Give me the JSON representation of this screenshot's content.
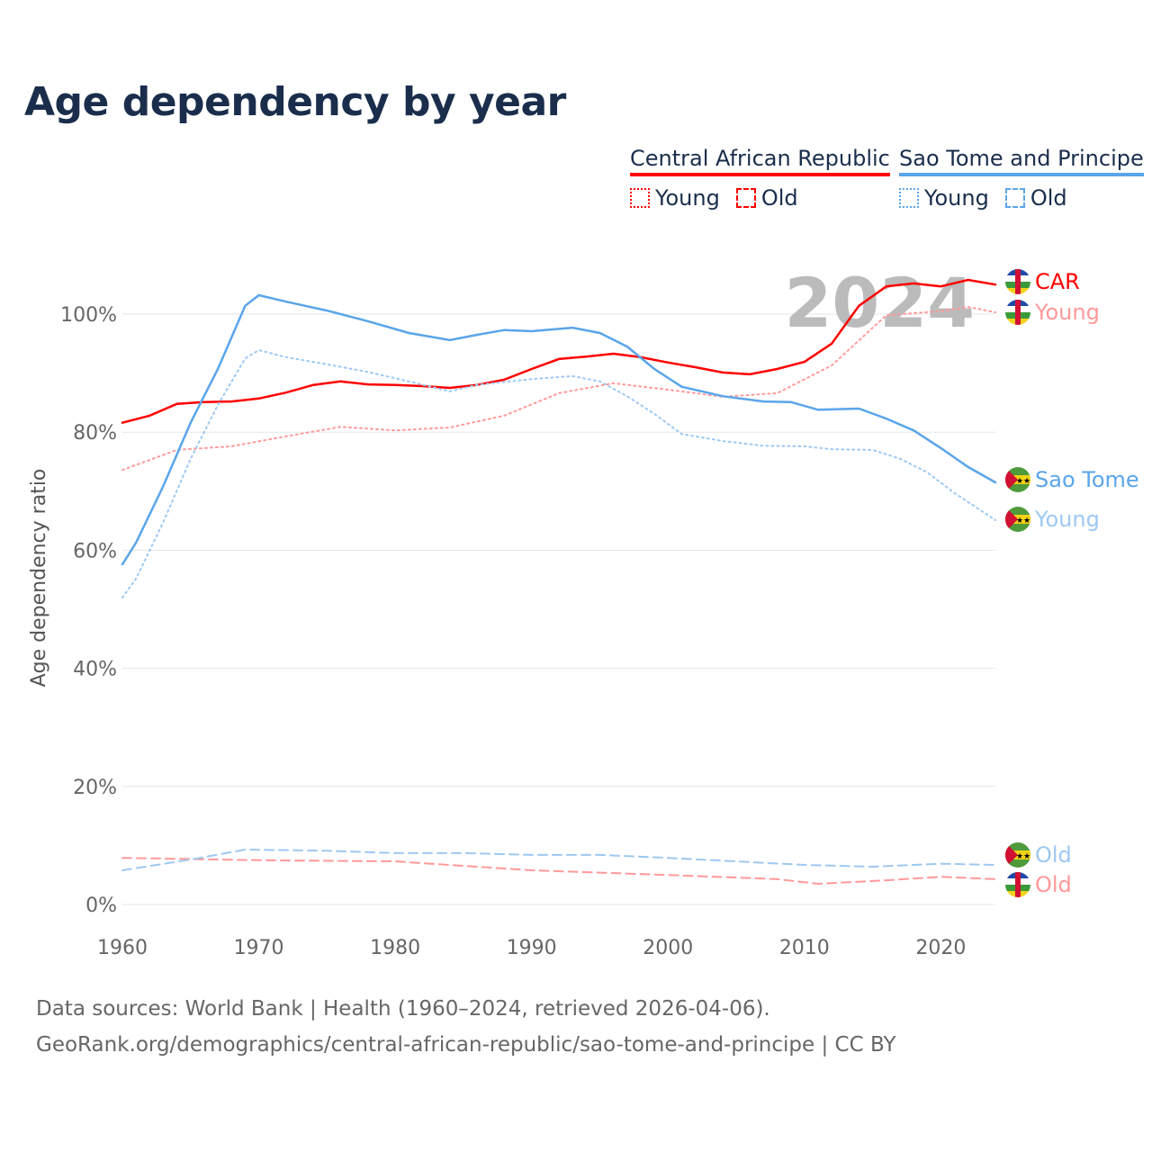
{
  "title": "Age dependency by year",
  "legend": {
    "groups": [
      {
        "name": "Central African Republic",
        "color": "#ff0000",
        "young": "Young",
        "old": "Old"
      },
      {
        "name": "Sao Tome and Principe",
        "color": "#5aa5ea",
        "young": "Young",
        "old": "Old"
      }
    ]
  },
  "year_watermark": "2024",
  "source_line1": "Data sources: World Bank | Health (1960–2024, retrieved 2026-04-06).",
  "source_line2": "GeoRank.org/demographics/central-african-republic/sao-tome-and-principe | CC BY",
  "chart_data": {
    "type": "line",
    "title": "Age dependency by year",
    "xlabel": "",
    "ylabel": "Age dependency ratio",
    "xlim": [
      1960,
      2024
    ],
    "ylim": [
      0,
      110
    ],
    "xticks": [
      1960,
      1970,
      1980,
      1990,
      2000,
      2010,
      2020
    ],
    "yticks": [
      0,
      20,
      40,
      60,
      80,
      100
    ],
    "ytick_labels": [
      "0%",
      "20%",
      "40%",
      "60%",
      "80%",
      "100%"
    ],
    "grid": true,
    "legend_position": "top-right",
    "series": [
      {
        "name": "CAR",
        "country": "Central African Republic",
        "kind": "total",
        "color": "#ff0000",
        "style": "solid",
        "label": "CAR",
        "x": [
          1960,
          1962,
          1964,
          1966,
          1968,
          1970,
          1972,
          1974,
          1976,
          1978,
          1980,
          1982,
          1984,
          1986,
          1988,
          1990,
          1992,
          1994,
          1996,
          1998,
          2000,
          2002,
          2004,
          2006,
          2008,
          2010,
          2012,
          2014,
          2016,
          2018,
          2020,
          2022,
          2024
        ],
        "y": [
          81.6,
          82.8,
          84.8,
          85.1,
          85.2,
          85.7,
          86.7,
          88.0,
          88.6,
          88.1,
          88.0,
          87.8,
          87.5,
          88.0,
          88.9,
          90.7,
          92.4,
          92.8,
          93.3,
          92.7,
          91.8,
          91.0,
          90.1,
          89.8,
          90.7,
          91.9,
          95.0,
          101.4,
          104.7,
          105.2,
          104.7,
          105.8,
          105.0
        ]
      },
      {
        "name": "CAR Young",
        "country": "Central African Republic",
        "kind": "young",
        "color": "#ff9999",
        "style": "dotted",
        "label": "Young",
        "x": [
          1960,
          1964,
          1968,
          1972,
          1976,
          1980,
          1984,
          1988,
          1992,
          1996,
          2000,
          2004,
          2008,
          2012,
          2016,
          2020,
          2022,
          2024
        ],
        "y": [
          73.6,
          77.0,
          77.6,
          79.3,
          80.9,
          80.3,
          80.8,
          82.8,
          86.6,
          88.3,
          87.2,
          86.0,
          86.6,
          91.3,
          99.8,
          100.5,
          101.2,
          100.3
        ]
      },
      {
        "name": "CAR Old",
        "country": "Central African Republic",
        "kind": "old",
        "color": "#ff9999",
        "style": "dashed",
        "label": "Old",
        "x": [
          1960,
          1970,
          1980,
          1990,
          2000,
          2008,
          2011,
          2016,
          2020,
          2024
        ],
        "y": [
          7.9,
          7.5,
          7.3,
          5.8,
          5.0,
          4.3,
          3.5,
          4.1,
          4.7,
          4.3
        ]
      },
      {
        "name": "Sao Tome",
        "country": "Sao Tome and Principe",
        "kind": "total",
        "color": "#5aa5ea",
        "style": "solid",
        "label": "Sao Tome",
        "x": [
          1960,
          1961,
          1963,
          1965,
          1967,
          1969,
          1970,
          1972,
          1975,
          1978,
          1981,
          1984,
          1986,
          1988,
          1990,
          1993,
          1995,
          1997,
          1999,
          2001,
          2004,
          2007,
          2009,
          2011,
          2014,
          2016,
          2018,
          2020,
          2022,
          2024
        ],
        "y": [
          57.6,
          61.3,
          70.9,
          81.6,
          90.7,
          101.4,
          103.2,
          102.1,
          100.6,
          98.8,
          96.8,
          95.6,
          96.5,
          97.3,
          97.1,
          97.7,
          96.8,
          94.5,
          90.7,
          87.7,
          86.1,
          85.2,
          85.1,
          83.8,
          84.0,
          82.3,
          80.3,
          77.3,
          74.1,
          71.5
        ]
      },
      {
        "name": "Sao Tome Young",
        "country": "Sao Tome and Principe",
        "kind": "young",
        "color": "#9ec8f2",
        "style": "dotted",
        "label": "Young",
        "x": [
          1960,
          1961,
          1963,
          1965,
          1967,
          1969,
          1970,
          1972,
          1975,
          1978,
          1981,
          1984,
          1986,
          1990,
          1993,
          1995,
          1997,
          1999,
          2001,
          2004,
          2007,
          2010,
          2012,
          2015,
          2017,
          2019,
          2021,
          2024
        ],
        "y": [
          52.0,
          55.2,
          64.8,
          75.5,
          84.6,
          92.5,
          93.9,
          92.7,
          91.5,
          90.2,
          88.6,
          86.9,
          88.0,
          89.0,
          89.5,
          88.6,
          86.1,
          83.1,
          79.7,
          78.5,
          77.7,
          77.6,
          77.1,
          77.0,
          75.5,
          73.2,
          69.7,
          65.1
        ]
      },
      {
        "name": "Sao Tome Old",
        "country": "Sao Tome and Principe",
        "kind": "old",
        "color": "#9ec8f2",
        "style": "dashed",
        "label": "Old",
        "x": [
          1960,
          1965,
          1969,
          1975,
          1980,
          1985,
          1990,
          1995,
          2000,
          2005,
          2010,
          2015,
          2020,
          2024
        ],
        "y": [
          5.8,
          7.6,
          9.3,
          9.1,
          8.7,
          8.7,
          8.4,
          8.4,
          7.9,
          7.3,
          6.7,
          6.4,
          6.9,
          6.7
        ]
      }
    ]
  }
}
